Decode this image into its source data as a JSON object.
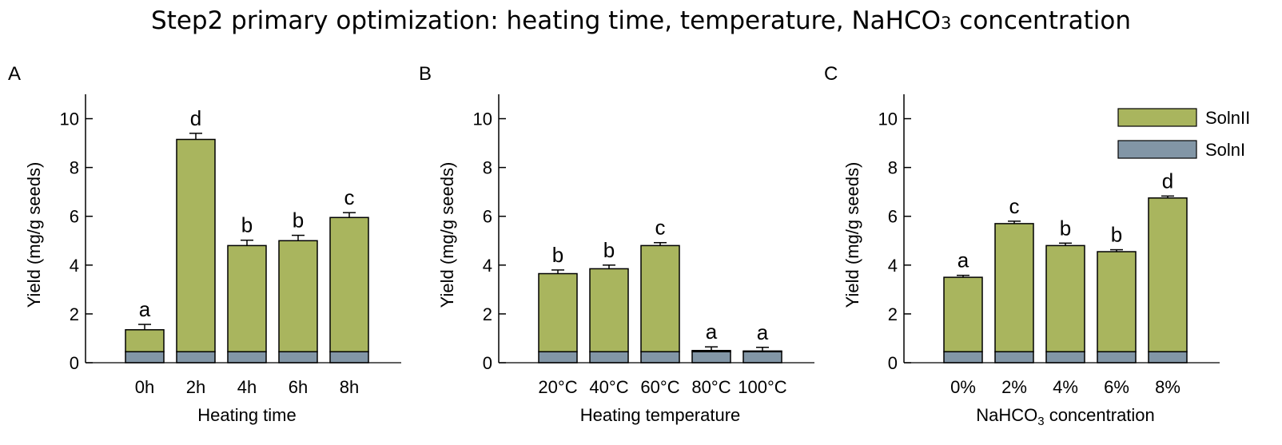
{
  "figure": {
    "title_prefix": "Step2 primary optimization: heating time, temperature, NaHCO",
    "title_subscript": "3",
    "title_suffix": " concentration"
  },
  "colors": {
    "solnII": "#a9b55e",
    "solnI": "#8296a6",
    "axis": "#000000"
  },
  "legend": {
    "items": [
      {
        "label": "SolnII",
        "key": "solnII"
      },
      {
        "label": "SolnI",
        "key": "solnI"
      }
    ]
  },
  "chart_data": [
    {
      "panel": "A",
      "type": "bar",
      "stacked": true,
      "xlabel": "Heating time",
      "ylabel": "Yield (mg/g seeds)",
      "ylim": [
        0,
        11
      ],
      "yticks": [
        0,
        2,
        4,
        6,
        8,
        10
      ],
      "categories": [
        "0h",
        "2h",
        "4h",
        "6h",
        "8h"
      ],
      "series": [
        {
          "name": "SolnI",
          "values": [
            0.45,
            0.45,
            0.45,
            0.45,
            0.45
          ]
        },
        {
          "name": "SolnII",
          "values": [
            0.9,
            8.7,
            4.35,
            4.55,
            5.5
          ]
        }
      ],
      "totals": [
        1.35,
        9.15,
        4.8,
        5.0,
        5.95
      ],
      "errors": [
        0.22,
        0.25,
        0.22,
        0.22,
        0.2
      ],
      "significance": [
        "a",
        "d",
        "b",
        "b",
        "c"
      ]
    },
    {
      "panel": "B",
      "type": "bar",
      "stacked": true,
      "xlabel": "Heating temperature",
      "ylabel": "Yield (mg/g seeds)",
      "ylim": [
        0,
        11
      ],
      "yticks": [
        0,
        2,
        4,
        6,
        8,
        10
      ],
      "categories": [
        "20°C",
        "40°C",
        "60°C",
        "80°C",
        "100°C"
      ],
      "series": [
        {
          "name": "SolnI",
          "values": [
            0.45,
            0.45,
            0.45,
            0.45,
            0.45
          ]
        },
        {
          "name": "SolnII",
          "values": [
            3.2,
            3.4,
            4.35,
            0.05,
            0.03
          ]
        }
      ],
      "totals": [
        3.65,
        3.85,
        4.8,
        0.5,
        0.48
      ],
      "errors": [
        0.15,
        0.15,
        0.12,
        0.15,
        0.15
      ],
      "significance": [
        "b",
        "b",
        "c",
        "a",
        "a"
      ]
    },
    {
      "panel": "C",
      "type": "bar",
      "stacked": true,
      "xlabel_prefix": "NaHCO",
      "xlabel_subscript": "3",
      "xlabel_suffix": " concentration",
      "ylabel": "Yield (mg/g seeds)",
      "ylim": [
        0,
        11
      ],
      "yticks": [
        0,
        2,
        4,
        6,
        8,
        10
      ],
      "categories": [
        "0%",
        "2%",
        "4%",
        "6%",
        "8%"
      ],
      "series": [
        {
          "name": "SolnI",
          "values": [
            0.45,
            0.45,
            0.45,
            0.45,
            0.45
          ]
        },
        {
          "name": "SolnII",
          "values": [
            3.05,
            5.25,
            4.35,
            4.1,
            6.3
          ]
        }
      ],
      "totals": [
        3.5,
        5.7,
        4.8,
        4.55,
        6.75
      ],
      "errors": [
        0.08,
        0.1,
        0.1,
        0.08,
        0.08
      ],
      "significance": [
        "a",
        "c",
        "b",
        "b",
        "d"
      ],
      "legend": "top-right"
    }
  ]
}
